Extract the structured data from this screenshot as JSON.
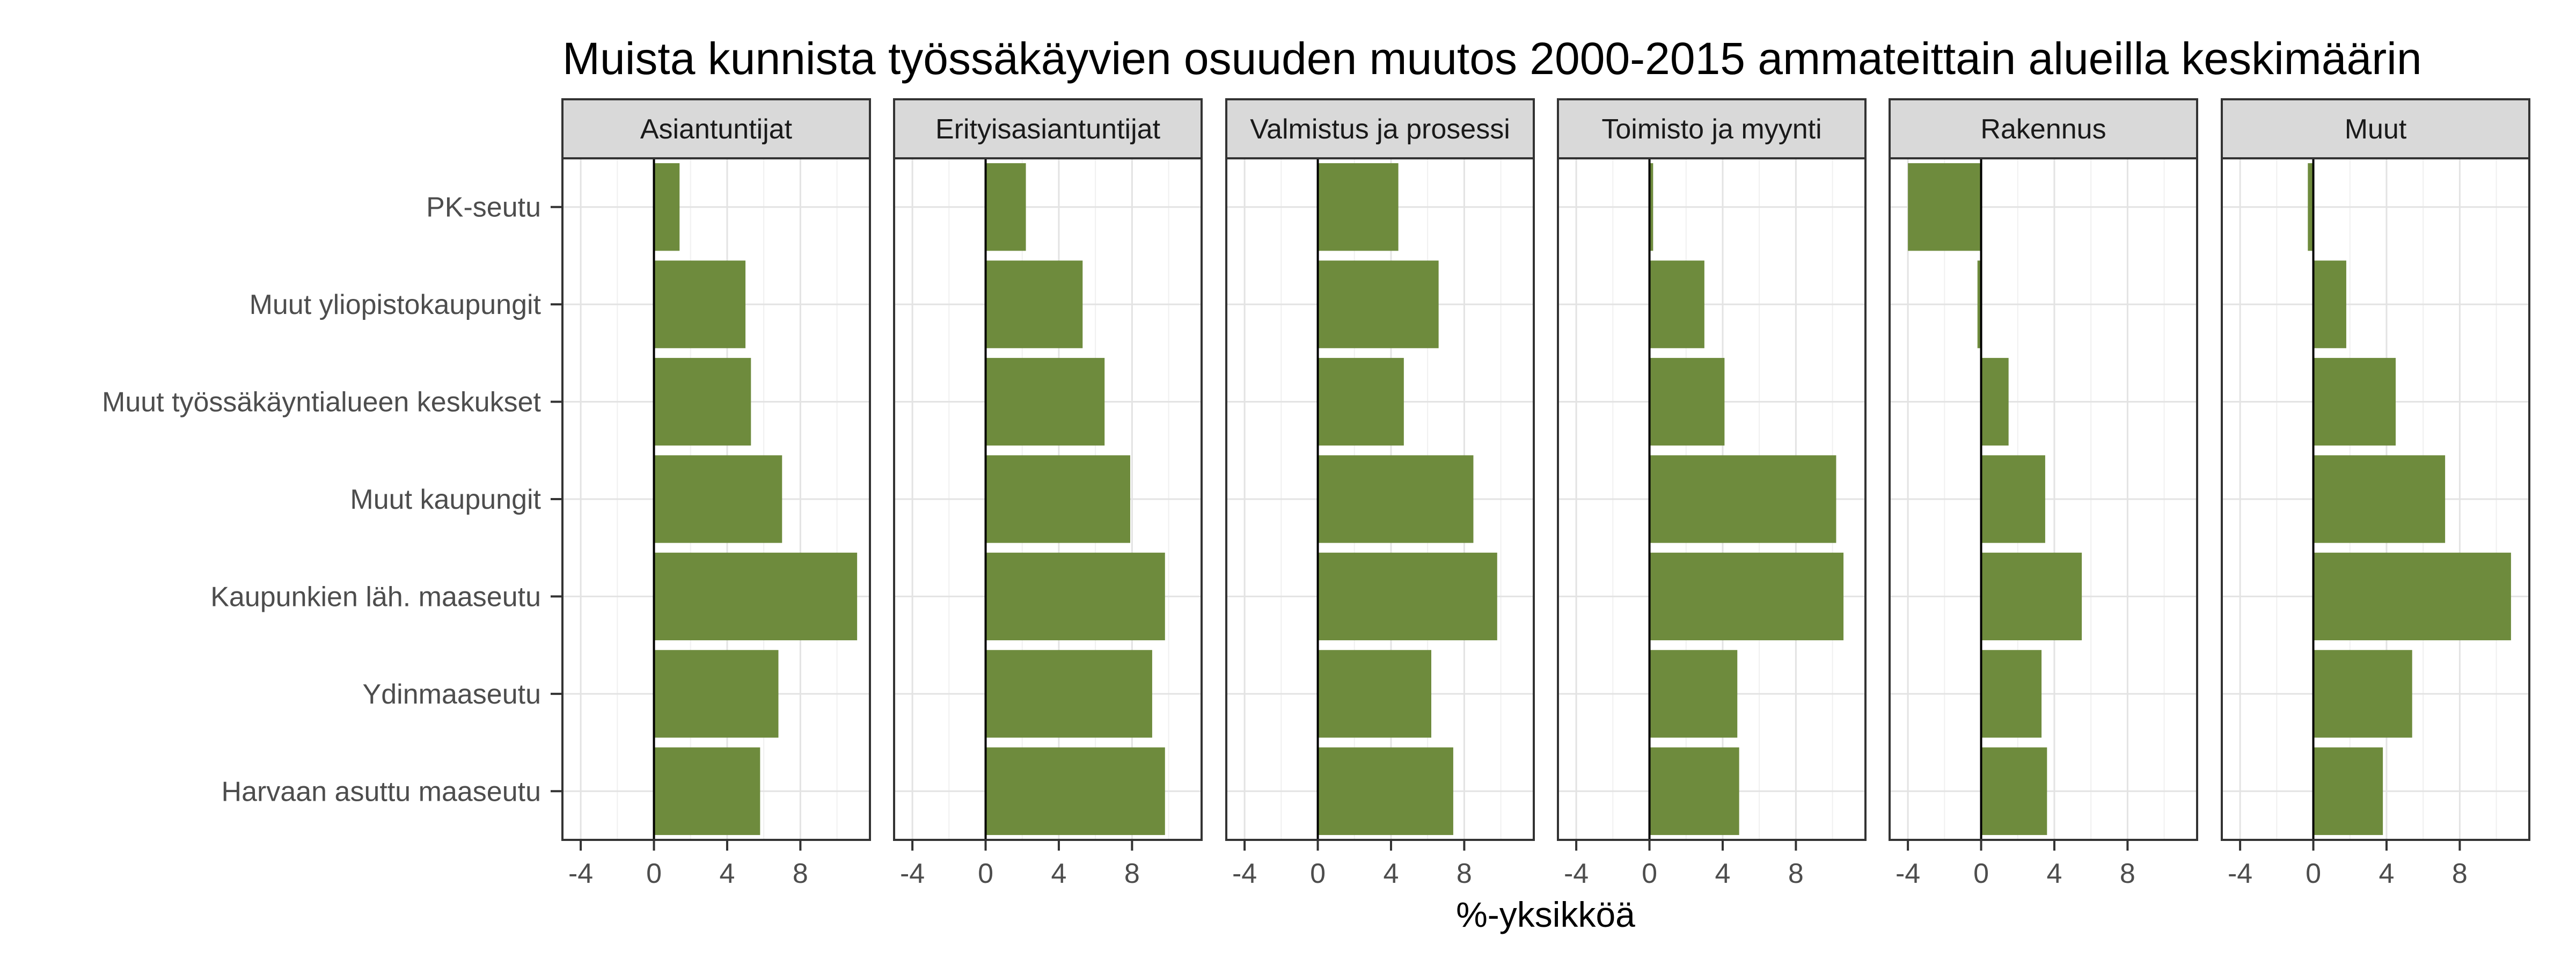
{
  "chart_data": {
    "type": "bar",
    "orientation": "horizontal",
    "title": "Muista kunnista työssäkäyvien osuuden muutos 2000-2015 ammateittain alueilla keskimäärin",
    "xlabel": "%-yksikköä",
    "ylabel": "",
    "xlim": [
      -5,
      11.8
    ],
    "xticks": [
      -4,
      0,
      4,
      8
    ],
    "grid": true,
    "bar_color": "#6e8b3d",
    "categories": [
      "PK-seutu",
      "Muut yliopistokaupungit",
      "Muut työssäkäyntialueen keskukset",
      "Muut kaupungit",
      "Kaupunkien läh. maaseutu",
      "Ydinmaaseutu",
      "Harvaan asuttu maaseutu"
    ],
    "panels": [
      {
        "name": "Asiantuntijat",
        "values": [
          1.4,
          5.0,
          5.3,
          7.0,
          11.1,
          6.8,
          5.8
        ]
      },
      {
        "name": "Erityisasiantuntijat",
        "values": [
          2.2,
          5.3,
          6.5,
          7.9,
          9.8,
          9.1,
          9.8
        ]
      },
      {
        "name": "Valmistus ja prosessi",
        "values": [
          4.4,
          6.6,
          4.7,
          8.5,
          9.8,
          6.2,
          7.4
        ]
      },
      {
        "name": "Toimisto ja myynti",
        "values": [
          0.2,
          3.0,
          4.1,
          10.2,
          10.6,
          4.8,
          4.9
        ]
      },
      {
        "name": "Rakennus",
        "values": [
          -4.0,
          -0.2,
          1.5,
          3.5,
          5.5,
          3.3,
          3.6
        ]
      },
      {
        "name": "Muut",
        "values": [
          -0.3,
          1.8,
          4.5,
          7.2,
          10.8,
          5.4,
          3.8
        ]
      }
    ]
  }
}
